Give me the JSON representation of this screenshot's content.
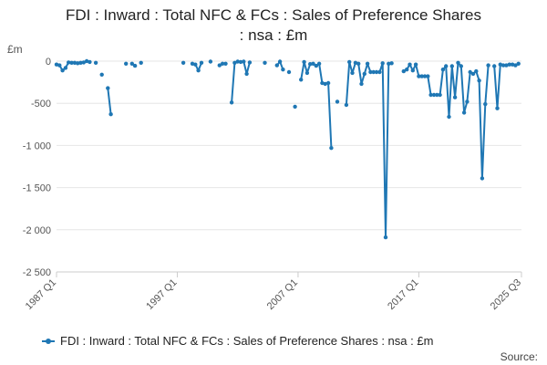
{
  "chart_data": {
    "type": "line",
    "title_line1": "FDI : Inward : Total NFC & FCs : Sales of Preference Shares",
    "title_line2": ": nsa : £m",
    "ylabel": "£m",
    "ylim": [
      -2500,
      0
    ],
    "yticks": [
      0,
      -500,
      -1000,
      -1500,
      -2000,
      -2500
    ],
    "ytick_labels": [
      "0",
      "-500",
      "-1 000",
      "-1 500",
      "-2 000",
      "-2 500"
    ],
    "xticks": [
      1987,
      1997,
      2007,
      2017,
      2025.5
    ],
    "xtick_labels": [
      "1987 Q1",
      "1997 Q1",
      "2007 Q1",
      "2017 Q1",
      "2025 Q3"
    ],
    "grid": "horizontal",
    "legend_position": "bottom",
    "series": [
      {
        "name": "FDI : Inward : Total NFC & FCs : Sales of Preference Shares : nsa : £m",
        "color": "#1f77b4",
        "points": [
          [
            1987.0,
            -40
          ],
          [
            1987.25,
            -50
          ],
          [
            1987.5,
            -110
          ],
          [
            1987.75,
            -80
          ],
          [
            1988.0,
            -15
          ],
          [
            1988.25,
            -20
          ],
          [
            1988.5,
            -20
          ],
          [
            1988.75,
            -25
          ],
          [
            1989.0,
            -20
          ],
          [
            1989.25,
            -15
          ],
          [
            1989.5,
            0
          ],
          [
            1989.75,
            -10
          ],
          null,
          [
            1990.25,
            -20
          ],
          null,
          [
            1990.75,
            -160
          ],
          null,
          [
            1991.25,
            -320
          ],
          [
            1991.5,
            -630
          ],
          null,
          [
            1992.75,
            -30
          ],
          null,
          [
            1993.25,
            -30
          ],
          [
            1993.5,
            -55
          ],
          null,
          [
            1994.0,
            -20
          ],
          null,
          [
            1997.5,
            -20
          ],
          null,
          [
            1998.25,
            -30
          ],
          [
            1998.5,
            -40
          ],
          [
            1998.75,
            -110
          ],
          [
            1999.0,
            -20
          ],
          null,
          [
            1999.75,
            -5
          ],
          null,
          [
            2000.5,
            -50
          ],
          [
            2000.75,
            -30
          ],
          [
            2001.0,
            -30
          ],
          null,
          [
            2001.5,
            -490
          ],
          [
            2001.75,
            -20
          ],
          [
            2002.0,
            -5
          ],
          [
            2002.25,
            -10
          ],
          [
            2002.5,
            -5
          ],
          [
            2002.75,
            -150
          ],
          [
            2003.0,
            -15
          ],
          null,
          [
            2004.25,
            -20
          ],
          null,
          [
            2005.25,
            -50
          ],
          [
            2005.5,
            -5
          ],
          [
            2005.75,
            -100
          ],
          null,
          [
            2006.25,
            -130
          ],
          null,
          [
            2006.75,
            -540
          ],
          null,
          [
            2007.25,
            -220
          ],
          [
            2007.5,
            -10
          ],
          [
            2007.75,
            -140
          ],
          [
            2008.0,
            -35
          ],
          [
            2008.25,
            -30
          ],
          [
            2008.5,
            -55
          ],
          [
            2008.75,
            -30
          ],
          [
            2009.0,
            -260
          ],
          [
            2009.25,
            -270
          ],
          [
            2009.5,
            -260
          ],
          [
            2009.75,
            -1030
          ],
          null,
          [
            2010.25,
            -480
          ],
          null,
          [
            2011.0,
            -520
          ],
          [
            2011.25,
            -10
          ],
          [
            2011.5,
            -140
          ],
          [
            2011.75,
            -20
          ],
          [
            2012.0,
            -30
          ],
          [
            2012.25,
            -270
          ],
          [
            2012.5,
            -150
          ],
          [
            2012.75,
            -30
          ],
          [
            2013.0,
            -130
          ],
          [
            2013.25,
            -130
          ],
          [
            2013.5,
            -130
          ],
          [
            2013.75,
            -130
          ],
          [
            2014.0,
            -25
          ],
          [
            2014.25,
            -2090
          ],
          [
            2014.5,
            -30
          ],
          [
            2014.75,
            -25
          ],
          null,
          [
            2015.75,
            -120
          ],
          [
            2016.0,
            -100
          ],
          [
            2016.25,
            -40
          ],
          [
            2016.5,
            -110
          ],
          [
            2016.75,
            -40
          ],
          [
            2017.0,
            -180
          ],
          [
            2017.25,
            -180
          ],
          [
            2017.5,
            -180
          ],
          [
            2017.75,
            -180
          ],
          [
            2018.0,
            -400
          ],
          [
            2018.25,
            -400
          ],
          [
            2018.5,
            -400
          ],
          [
            2018.75,
            -400
          ],
          [
            2019.0,
            -100
          ],
          [
            2019.25,
            -60
          ],
          [
            2019.5,
            -660
          ],
          [
            2019.75,
            -60
          ],
          [
            2020.0,
            -430
          ],
          [
            2020.25,
            -20
          ],
          [
            2020.5,
            -60
          ],
          [
            2020.75,
            -610
          ],
          [
            2021.0,
            -480
          ],
          [
            2021.25,
            -130
          ],
          [
            2021.5,
            -150
          ],
          [
            2021.75,
            -120
          ],
          [
            2022.0,
            -230
          ],
          [
            2022.25,
            -1390
          ],
          [
            2022.5,
            -510
          ],
          [
            2022.75,
            -50
          ],
          null,
          [
            2023.25,
            -60
          ],
          [
            2023.5,
            -560
          ],
          [
            2023.75,
            -40
          ],
          [
            2024.0,
            -50
          ],
          [
            2024.25,
            -50
          ],
          [
            2024.5,
            -40
          ],
          [
            2024.75,
            -40
          ],
          [
            2025.0,
            -50
          ],
          [
            2025.25,
            -30
          ]
        ]
      }
    ]
  },
  "legend_label": "FDI : Inward : Total NFC & FCs : Sales of Preference Shares : nsa : £m",
  "source_label": "Source:"
}
